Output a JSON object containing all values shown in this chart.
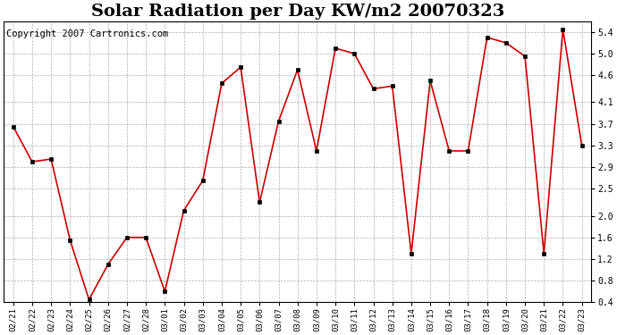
{
  "title": "Solar Radiation per Day KW/m2 20070323",
  "copyright": "Copyright 2007 Cartronics.com",
  "dates": [
    "02/21",
    "02/22",
    "02/23",
    "02/24",
    "02/25",
    "02/26",
    "02/27",
    "02/28",
    "03/01",
    "03/02",
    "03/03",
    "03/04",
    "03/05",
    "03/06",
    "03/07",
    "03/08",
    "03/09",
    "03/10",
    "03/11",
    "03/12",
    "03/13",
    "03/14",
    "03/15",
    "03/16",
    "03/17",
    "03/18",
    "03/19",
    "03/20",
    "03/21",
    "03/22",
    "03/23"
  ],
  "values": [
    3.65,
    3.0,
    3.05,
    1.55,
    0.45,
    1.1,
    1.6,
    1.6,
    0.6,
    2.1,
    2.65,
    4.45,
    4.75,
    2.25,
    3.75,
    4.7,
    3.2,
    5.1,
    5.0,
    4.35,
    4.4,
    1.3,
    4.5,
    3.2,
    3.2,
    5.3,
    5.2,
    4.95,
    1.3,
    5.45,
    3.3
  ],
  "line_color": "#cc0000",
  "marker_color": "#000000",
  "background_color": "#ffffff",
  "plot_bg_color": "#ffffff",
  "grid_color": "#999999",
  "ylim": [
    0.4,
    5.6
  ],
  "yticks": [
    0.4,
    0.8,
    1.2,
    1.6,
    2.0,
    2.5,
    2.9,
    3.3,
    3.7,
    4.1,
    4.6,
    5.0,
    5.4
  ],
  "title_fontsize": 14,
  "copyright_fontsize": 7.5,
  "tick_fontsize": 7,
  "xtick_fontsize": 6.5
}
